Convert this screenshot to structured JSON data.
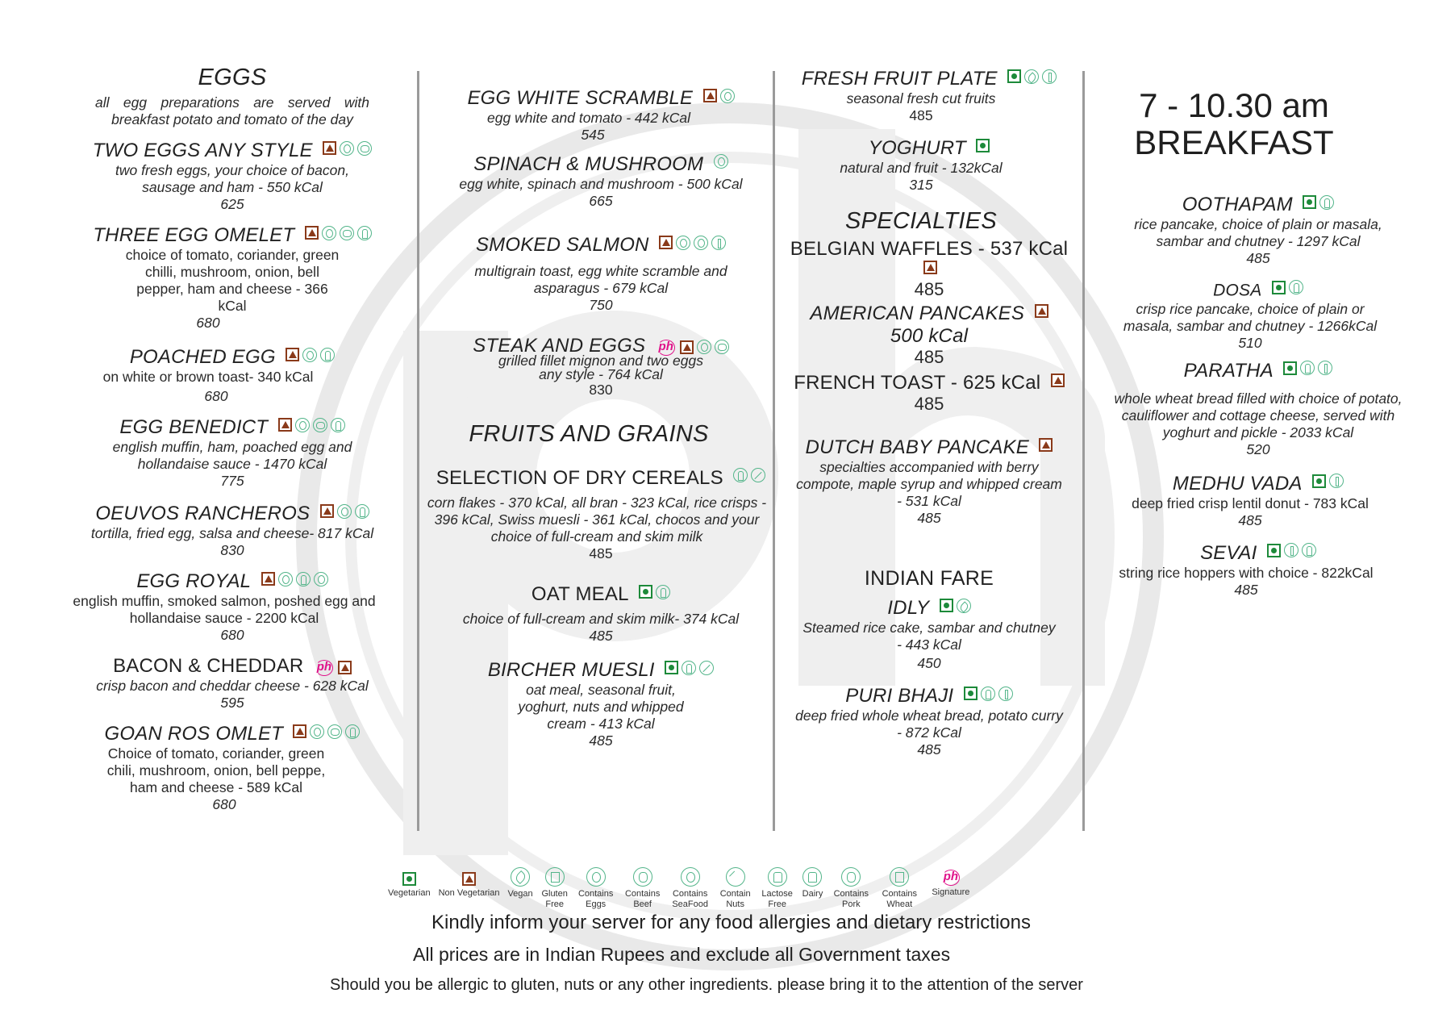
{
  "header": {
    "hours": "7 - 10.30 am",
    "meal": "BREAKFAST"
  },
  "eggs": {
    "title": "EGGS",
    "intro": "all egg preparations are served with breakfast potato and tomato of the day",
    "items": [
      {
        "name": "TWO EGGS ANY STYLE",
        "desc": "two fresh eggs, your choice of bacon, sausage and ham - 550 kCal",
        "price": "625"
      },
      {
        "name": "THREE EGG OMELET",
        "desc": "choice of tomato, coriander, green chilli, mushroom, onion, bell pepper, ham and cheese - 366 kCal",
        "price": "680"
      },
      {
        "name": "POACHED EGG",
        "desc": "on white or brown toast- 340 kCal",
        "price": "680"
      },
      {
        "name": "EGG BENEDICT",
        "desc": "english muffin, ham, poached egg and hollandaise sauce - 1470 kCal",
        "price": "775"
      },
      {
        "name": "OEUVOS RANCHEROS",
        "desc": "tortilla, fried egg, salsa and cheese- 817 kCal",
        "price": "830"
      },
      {
        "name": "EGG ROYAL",
        "desc": "english muffin, smoked salmon, poshed egg and hollandaise sauce - 2200 kCal",
        "price": "680"
      },
      {
        "name": "BACON & CHEDDAR",
        "desc": "crisp bacon and cheddar cheese - 628 kCal",
        "price": "595"
      },
      {
        "name": "GOAN ROS OMLET",
        "desc": "Choice of tomato, coriander, green chili, mushroom, onion, bell peppe, ham and cheese - 589 kCal",
        "price": "680"
      }
    ]
  },
  "col2": {
    "items": [
      {
        "name": "EGG WHITE SCRAMBLE",
        "desc": "egg white and tomato - 442 kCal",
        "price": "545"
      },
      {
        "name": "SPINACH & MUSHROOM",
        "desc": "egg white, spinach and mushroom - 500 kCal",
        "price": "665"
      },
      {
        "name": "SMOKED SALMON",
        "desc": "multigrain toast, egg white scramble and asparagus - 679 kCal",
        "price": "750"
      },
      {
        "name": "STEAK AND EGGS",
        "desc": "grilled fillet mignon and two eggs any style - 764 kCal",
        "price": "830"
      }
    ],
    "fruits_title": "FRUITS AND GRAINS",
    "fruits": [
      {
        "name": "SELECTION OF DRY CEREALS",
        "desc": "corn flakes - 370 kCal, all bran - 323 kCal, rice crisps - 396 kCal, Swiss muesli - 361 kCal, chocos and your choice of full-cream and skim milk",
        "price": "485"
      },
      {
        "name": "OAT MEAL",
        "desc": "choice of full-cream and skim milk- 374 kCal",
        "price": "485"
      },
      {
        "name": "BIRCHER MUESLI",
        "desc": "oat meal, seasonal fruit, yoghurt, nuts and whipped cream - 413 kCal",
        "price": "485"
      }
    ]
  },
  "col3": {
    "items": [
      {
        "name": "FRESH FRUIT PLATE",
        "desc": "seasonal fresh cut fruits",
        "price": "485"
      },
      {
        "name": "YOGHURT",
        "desc": "natural and fruit - 132kCal",
        "price": "315"
      }
    ],
    "specialties_title": "SPECIALTIES",
    "specialties": [
      {
        "name": "BELGIAN WAFFLES - 537 kCal",
        "price": "485"
      },
      {
        "name": "AMERICAN PANCAKES",
        "name2": "500 kCal",
        "price": "485"
      },
      {
        "name": "FRENCH TOAST - 625 kCal",
        "price": "485"
      },
      {
        "name": "DUTCH BABY PANCAKE",
        "desc": "specialties accompanied with berry compote, maple syrup and whipped cream - 531 kCal",
        "price": "485"
      }
    ],
    "indian_title": "INDIAN FARE",
    "indian": [
      {
        "name": "IDLY",
        "desc": "Steamed rice cake, sambar and chutney - 443 kCal",
        "price": "450"
      },
      {
        "name": "PURI BHAJI",
        "desc": "deep fried whole wheat bread, potato curry - 872 kCal",
        "price": "485"
      }
    ]
  },
  "col4": {
    "items": [
      {
        "name": "OOTHAPAM",
        "desc": "rice pancake, choice of plain or masala, sambar and chutney - 1297 kCal",
        "price": "485"
      },
      {
        "name": "DOSA",
        "desc": "crisp rice pancake, choice of plain or masala, sambar and chutney - 1266kCal",
        "price": "510"
      },
      {
        "name": "PARATHA",
        "desc": "whole wheat bread filled with choice of potato, cauliflower and cottage cheese, served with yoghurt and pickle - 2033 kCal",
        "price": "520"
      },
      {
        "name": "MEDHU VADA",
        "desc": "deep fried crisp lentil donut - 783 kCal",
        "price": "485"
      },
      {
        "name": "SEVAI",
        "desc": "string rice hoppers with choice - 822kCal",
        "price": "485"
      }
    ]
  },
  "legend": [
    {
      "icon": "vegetarian-icon",
      "label": "Vegetarian"
    },
    {
      "icon": "non-vegetarian-icon",
      "label": "Non Vegetarian"
    },
    {
      "icon": "vegan-icon",
      "label": "Vegan"
    },
    {
      "icon": "gluten-free-icon",
      "label": "Gluten Free"
    },
    {
      "icon": "contains-eggs-icon",
      "label": "Contains Eggs"
    },
    {
      "icon": "contains-beef-icon",
      "label": "Contains Beef"
    },
    {
      "icon": "contains-seafood-icon",
      "label": "Contains SeaFood"
    },
    {
      "icon": "contain-nuts-icon",
      "label": "Contain Nuts"
    },
    {
      "icon": "lactose-free-icon",
      "label": "Lactose Free"
    },
    {
      "icon": "dairy-icon",
      "label": "Dairy"
    },
    {
      "icon": "contains-pork-icon",
      "label": "Contains Pork"
    },
    {
      "icon": "contains-wheat-icon",
      "label": "Contains Wheat"
    },
    {
      "icon": "signature-icon",
      "label": "Signature"
    }
  ],
  "footer": {
    "line1": "Kindly inform your server for any food allergies and dietary restrictions",
    "line2": "All prices are in Indian Rupees and exclude all Government taxes",
    "line3": "Should you be allergic to gluten, nuts or any other ingredients. please bring it to the attention of the server"
  },
  "colors": {
    "veg": "#1d8a3a",
    "nonveg": "#8a3a1a",
    "allergen": "#53b58a",
    "signature": "#e0128a",
    "divider": "#9a9a9a",
    "watermark": "#ececec"
  }
}
